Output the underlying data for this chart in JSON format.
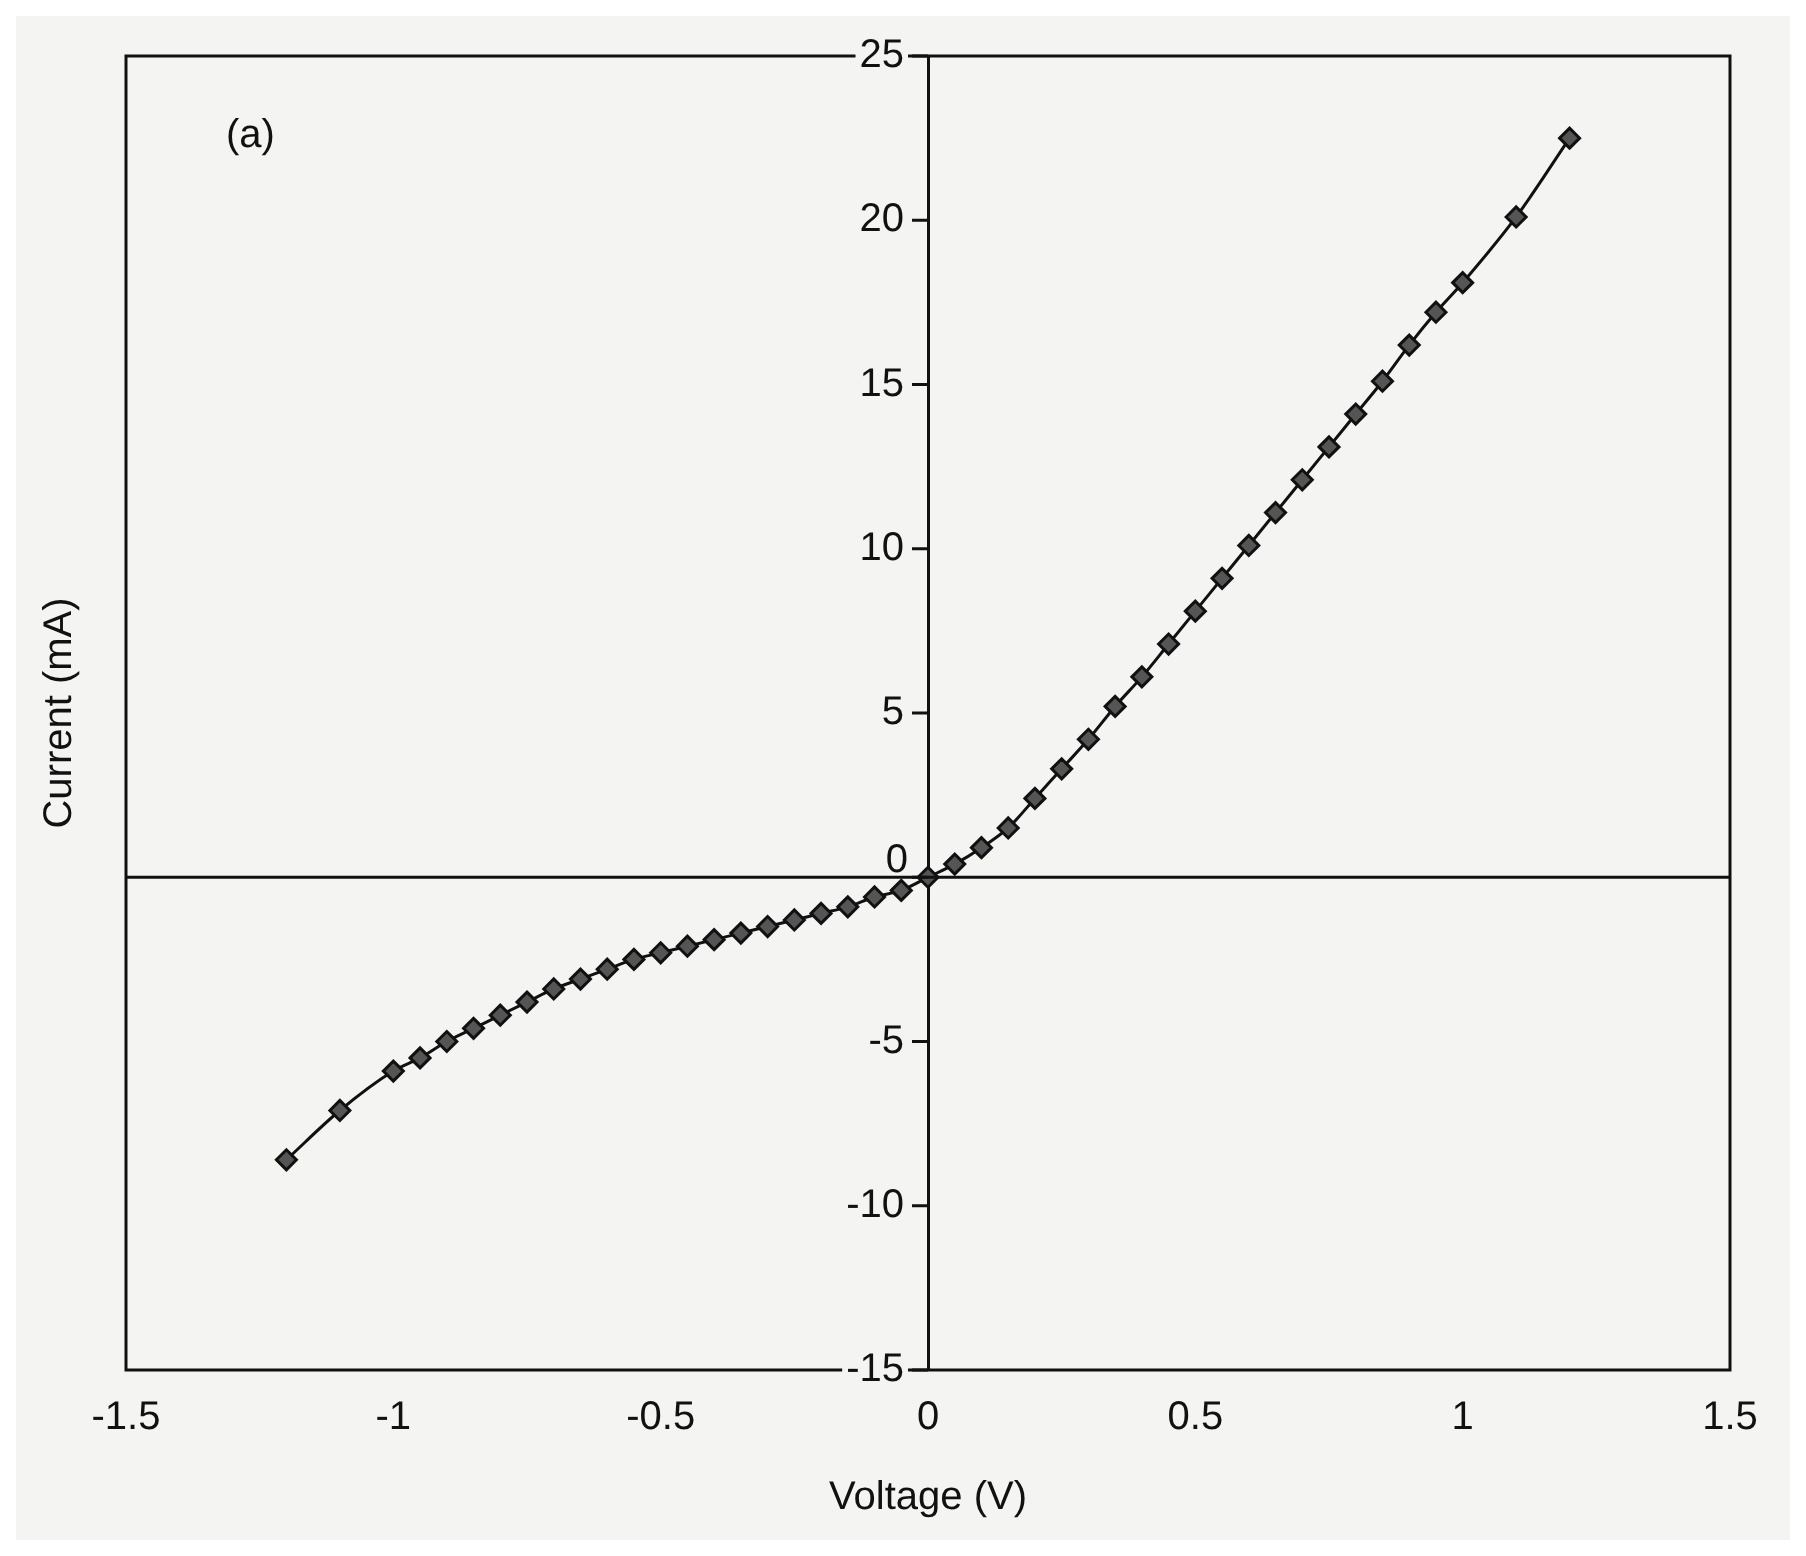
{
  "chart_data": {
    "type": "line",
    "xlabel": "Voltage (V)",
    "ylabel": "Current (mA)",
    "annotations": [
      "(a)"
    ],
    "x": [
      -1.2,
      -1.1,
      -1.0,
      -0.95,
      -0.9,
      -0.85,
      -0.8,
      -0.75,
      -0.7,
      -0.65,
      -0.6,
      -0.55,
      -0.5,
      -0.45,
      -0.4,
      -0.35,
      -0.3,
      -0.25,
      -0.2,
      -0.15,
      -0.1,
      -0.05,
      0,
      0.05,
      0.1,
      0.15,
      0.2,
      0.25,
      0.3,
      0.35,
      0.4,
      0.45,
      0.5,
      0.55,
      0.6,
      0.65,
      0.7,
      0.75,
      0.8,
      0.85,
      0.9,
      0.95,
      1.0,
      1.1,
      1.2
    ],
    "series": [
      {
        "color": "#555555",
        "values": [
          -8.6,
          -7.1,
          -5.9,
          -5.5,
          -5.0,
          -4.6,
          -4.2,
          -3.8,
          -3.4,
          -3.1,
          -2.8,
          -2.5,
          -2.3,
          -2.1,
          -1.9,
          -1.7,
          -1.5,
          -1.3,
          -1.1,
          -0.9,
          -0.6,
          -0.4,
          0,
          0.4,
          0.9,
          1.5,
          2.4,
          3.3,
          4.2,
          5.2,
          6.1,
          7.1,
          8.1,
          9.1,
          10.1,
          11.1,
          12.1,
          13.1,
          14.1,
          15.1,
          16.2,
          17.2,
          18.1,
          20.1,
          22.5
        ]
      }
    ],
    "xlim": [
      -1.5,
      1.5
    ],
    "xticks": [
      -1.5,
      -1,
      -0.5,
      0,
      0.5,
      1,
      1.5
    ],
    "ylim": [
      -15,
      25
    ],
    "yticks": [
      -15,
      -10,
      -5,
      0,
      5,
      10,
      15,
      20,
      25
    ],
    "ref_lines": [
      {
        "axis": "y",
        "value": 0
      }
    ],
    "marker": "diamond",
    "line_style": "solid",
    "grid": false,
    "legend": false
  }
}
